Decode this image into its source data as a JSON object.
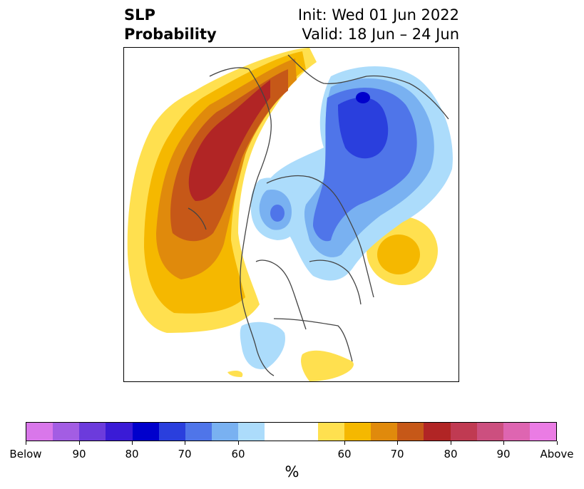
{
  "title": {
    "left_line1": "SLP",
    "left_line2": "Probability",
    "right_line1": "Init: Wed 01 Jun 2022",
    "right_line2": "Valid: 18 Jun – 24 Jun"
  },
  "colorbar": {
    "colors": [
      "#d977ea",
      "#a35de3",
      "#6c3bdc",
      "#3a1bd6",
      "#0000cc",
      "#2a3fdd",
      "#4f75e9",
      "#79b1f1",
      "#acdcfb",
      "#ffffff",
      "#ffffff",
      "#ffe04f",
      "#f5b800",
      "#e08a0c",
      "#c65818",
      "#b12525",
      "#c03a52",
      "#cc4f7f",
      "#de65b1",
      "#ea7ce4"
    ],
    "labels": [
      "Below",
      "90",
      "80",
      "70",
      "60",
      "60",
      "70",
      "80",
      "90",
      "Above"
    ],
    "unit": "%"
  },
  "colors": {
    "above_60": "#ffe04f",
    "above_65": "#f5b800",
    "above_70": "#e08a0c",
    "above_75": "#c65818",
    "above_80": "#b12525",
    "below_60": "#acdcfb",
    "below_65": "#79b1f1",
    "below_70": "#4f75e9",
    "below_75": "#2a3fdd",
    "below_80": "#0000cc"
  }
}
